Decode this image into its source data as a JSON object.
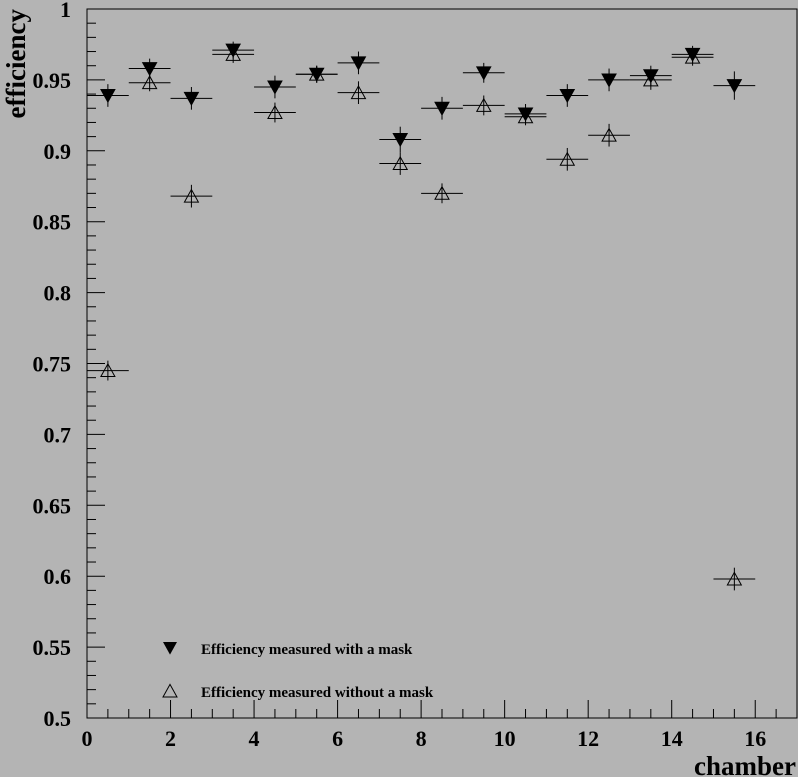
{
  "chart_data": {
    "type": "scatter",
    "title": "",
    "xlabel": "chamber",
    "ylabel": "efficiency",
    "xlim": [
      0,
      17
    ],
    "ylim": [
      0.5,
      1.0
    ],
    "x_ticks": [
      0,
      2,
      4,
      6,
      8,
      10,
      12,
      14,
      16
    ],
    "x_tick_labels": [
      "0",
      "2",
      "4",
      "6",
      "8",
      "10",
      "12",
      "14",
      "16"
    ],
    "y_ticks": [
      0.5,
      0.55,
      0.6,
      0.65,
      0.7,
      0.75,
      0.8,
      0.85,
      0.9,
      0.95,
      1.0
    ],
    "y_tick_labels": [
      "0.5",
      "0.55",
      "0.6",
      "0.65",
      "0.7",
      "0.75",
      "0.8",
      "0.85",
      "0.9",
      "0.95",
      "1"
    ],
    "x_bin_half_width": 0.5,
    "grid": false,
    "legend_position": "bottom-left",
    "series": [
      {
        "name": "Efficiency measured with a mask",
        "marker": "filled-down-triangle",
        "color": "#000000",
        "x": [
          0.5,
          1.5,
          2.5,
          3.5,
          4.5,
          5.5,
          6.5,
          7.5,
          8.5,
          9.5,
          10.5,
          11.5,
          12.5,
          13.5,
          14.5,
          15.5
        ],
        "y": [
          0.939,
          0.958,
          0.937,
          0.971,
          0.945,
          0.954,
          0.962,
          0.908,
          0.93,
          0.955,
          0.926,
          0.939,
          0.95,
          0.953,
          0.968,
          0.946
        ],
        "err": [
          0.008,
          0.007,
          0.008,
          0.006,
          0.008,
          0.006,
          0.008,
          0.009,
          0.008,
          0.007,
          0.007,
          0.008,
          0.008,
          0.007,
          0.006,
          0.01
        ]
      },
      {
        "name": "Efficiency measured without a mask",
        "marker": "open-up-triangle",
        "color": "#000000",
        "x": [
          0.5,
          1.5,
          2.5,
          3.5,
          4.5,
          5.5,
          6.5,
          7.5,
          8.5,
          9.5,
          10.5,
          11.5,
          12.5,
          13.5,
          14.5,
          15.5
        ],
        "y": [
          0.745,
          0.948,
          0.868,
          0.968,
          0.927,
          0.954,
          0.941,
          0.891,
          0.87,
          0.932,
          0.924,
          0.894,
          0.911,
          0.95,
          0.966,
          0.598
        ],
        "err": [
          0.007,
          0.006,
          0.008,
          0.006,
          0.007,
          0.006,
          0.008,
          0.008,
          0.007,
          0.007,
          0.006,
          0.008,
          0.008,
          0.007,
          0.006,
          0.008
        ]
      }
    ]
  }
}
